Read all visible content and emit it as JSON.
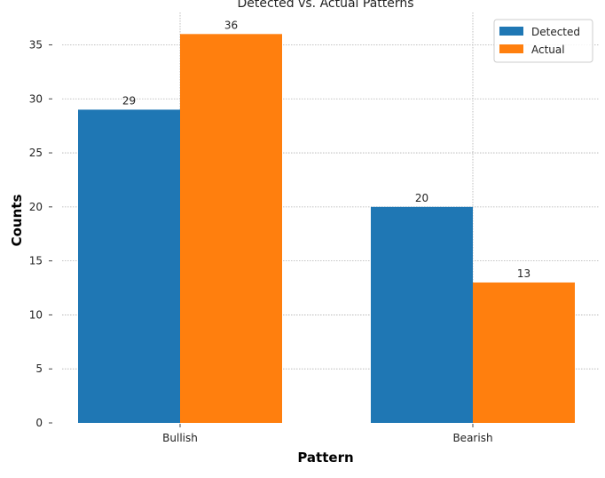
{
  "chart_data": {
    "type": "bar",
    "title": "Detected vs. Actual Patterns",
    "xlabel": "Pattern",
    "ylabel": "Counts",
    "categories": [
      "Bullish",
      "Bearish"
    ],
    "series": [
      {
        "name": "Detected",
        "values": [
          29,
          20
        ],
        "color": "#1f77b4"
      },
      {
        "name": "Actual",
        "values": [
          36,
          13
        ],
        "color": "#ff7f0e"
      }
    ],
    "ylim": [
      0,
      38
    ],
    "yticks": [
      0,
      5,
      10,
      15,
      20,
      25,
      30,
      35
    ],
    "grid": true,
    "legend_position": "top-right"
  }
}
